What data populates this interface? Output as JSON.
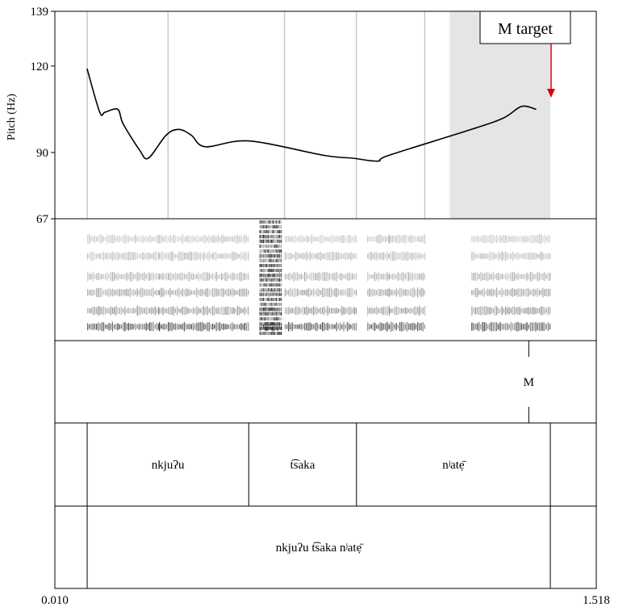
{
  "chart_data": {
    "type": "line",
    "ylabel": "Pitch (Hz)",
    "yticks": [
      "139",
      "120",
      "90",
      "67"
    ],
    "ylim": [
      67,
      139
    ],
    "xlim": [
      0.01,
      1.518
    ],
    "xticks": [
      "0.010",
      "1.518"
    ],
    "pitch_series": [
      {
        "x": 0.1,
        "y": 119
      },
      {
        "x": 0.135,
        "y": 104
      },
      {
        "x": 0.15,
        "y": 104
      },
      {
        "x": 0.185,
        "y": 105
      },
      {
        "x": 0.2,
        "y": 100
      },
      {
        "x": 0.245,
        "y": 91
      },
      {
        "x": 0.27,
        "y": 88
      },
      {
        "x": 0.32,
        "y": 96
      },
      {
        "x": 0.355,
        "y": 98
      },
      {
        "x": 0.39,
        "y": 96
      },
      {
        "x": 0.43,
        "y": 92
      },
      {
        "x": 0.55,
        "y": 94
      },
      {
        "x": 0.76,
        "y": 89
      },
      {
        "x": 0.84,
        "y": 88
      },
      {
        "x": 0.91,
        "y": 87
      },
      {
        "x": 0.94,
        "y": 89
      },
      {
        "x": 1.17,
        "y": 98
      },
      {
        "x": 1.26,
        "y": 102
      },
      {
        "x": 1.31,
        "y": 106
      },
      {
        "x": 1.35,
        "y": 105
      }
    ],
    "interval_boundaries": [
      0.1,
      0.325,
      0.65,
      0.85,
      1.04
    ],
    "highlight_interval": [
      1.11,
      1.39
    ],
    "tone_tier": [
      {
        "label": "M",
        "time": 1.33
      }
    ],
    "word_tier": [
      {
        "start": 0.1,
        "end": 0.55,
        "label": "nkjuʔu"
      },
      {
        "start": 0.55,
        "end": 0.85,
        "label": "t͡saka"
      },
      {
        "start": 0.85,
        "end": 1.39,
        "label": "nʲatẹ̄"
      }
    ],
    "phrase_tier": [
      {
        "start": 0.1,
        "end": 1.39,
        "label": "nkjuʔu t͡saka nʲatẹ̄"
      }
    ],
    "annotation": {
      "text": "M target",
      "arrow_color": "#e00000"
    },
    "highlight_color": "#e5e5e5"
  }
}
